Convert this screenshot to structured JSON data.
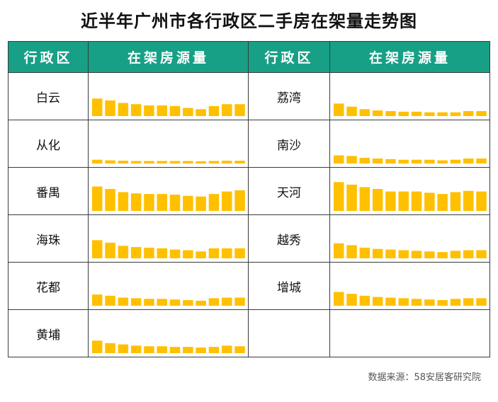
{
  "title": "近半年广州市各行政区二手房在架量走势图",
  "header": {
    "col1": "行政区",
    "col2": "在架房源量",
    "col3": "行政区",
    "col4": "在架房源量"
  },
  "source": "数据来源：58安居客研究院",
  "colors": {
    "bar": "#ffc000",
    "header_bg": "#17a086"
  },
  "chart_data": {
    "type": "bar",
    "note_scale": "shared",
    "ylim": [
      0,
      26
    ],
    "districts_left": [
      {
        "name": "白云",
        "values": [
          14,
          12.5,
          10.5,
          9.5,
          8.5,
          8.5,
          8,
          6.5,
          5.5,
          8,
          9.5,
          9.5
        ]
      },
      {
        "name": "从化",
        "values": [
          3,
          2.5,
          2.2,
          2,
          2,
          2,
          2,
          2,
          1.8,
          2,
          2.2,
          2.2
        ]
      },
      {
        "name": "番禺",
        "values": [
          19.5,
          17.5,
          15,
          14,
          13.5,
          13.5,
          13,
          12,
          11.5,
          13.5,
          15.5,
          16.5
        ]
      },
      {
        "name": "海珠",
        "values": [
          14.5,
          12.5,
          10,
          9,
          8.5,
          8,
          7,
          6.5,
          5.5,
          8,
          8,
          8
        ]
      },
      {
        "name": "花都",
        "values": [
          9,
          8,
          6.5,
          6,
          5.5,
          5.5,
          5,
          4.5,
          4,
          6,
          6.5,
          6.5
        ]
      },
      {
        "name": "黄埔",
        "values": [
          10,
          8,
          7,
          6,
          5.5,
          5.5,
          5,
          5,
          4.5,
          5,
          6,
          5.5
        ]
      }
    ],
    "districts_right": [
      {
        "name": "荔湾",
        "values": [
          10,
          7.5,
          5.5,
          4.5,
          4,
          3.5,
          3.5,
          3,
          3,
          3,
          4,
          4
        ]
      },
      {
        "name": "南沙",
        "values": [
          6.5,
          6,
          4.5,
          4,
          3.5,
          3,
          3,
          3,
          2.5,
          3,
          4,
          4
        ]
      },
      {
        "name": "天河",
        "values": [
          23,
          21,
          19,
          17.5,
          15.5,
          15.5,
          15.5,
          14.5,
          13.5,
          15,
          16,
          15.5
        ]
      },
      {
        "name": "越秀",
        "values": [
          12,
          10.5,
          8.5,
          7.5,
          7,
          6.5,
          6,
          5.5,
          5,
          6,
          6.5,
          6.5
        ]
      },
      {
        "name": "增城",
        "values": [
          11,
          9.5,
          8,
          7,
          6.5,
          6,
          5.5,
          5,
          4.5,
          5.5,
          6,
          6
        ]
      }
    ]
  }
}
